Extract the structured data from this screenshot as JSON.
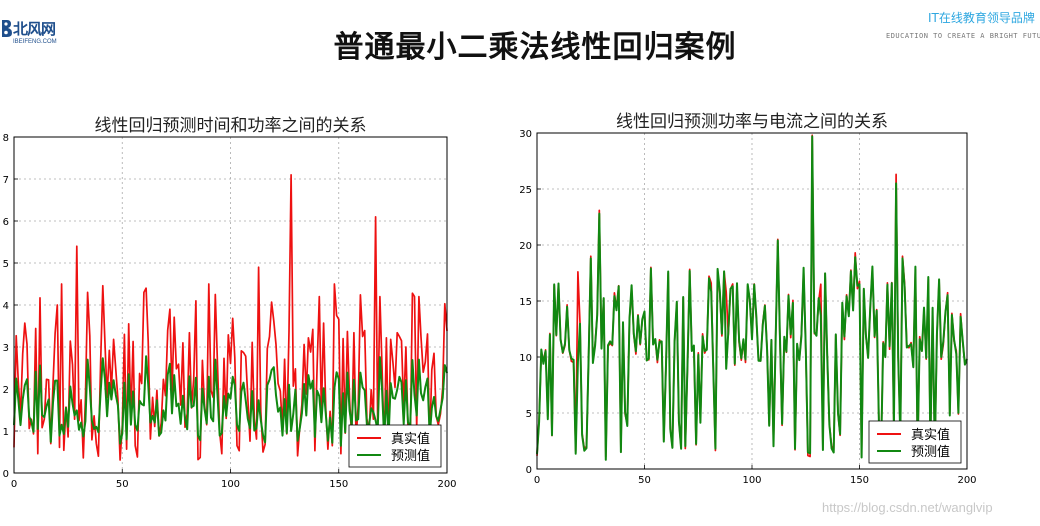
{
  "header": {
    "logo_cn": "北风网",
    "logo_en": "IBEIFENG.COM",
    "title": "普通最小二乘法线性回归案例",
    "tagline_cn": "IT在线教育领导品牌",
    "tagline_en": "EDUCATION TO CREATE A BRIGHT FUTURE"
  },
  "watermark": "https://blog.csdn.net/wanglvip",
  "colors": {
    "real": "#ee1111",
    "pred": "#118811"
  },
  "chart_data": [
    {
      "type": "line",
      "title": "线性回归预测时间和功率之间的关系",
      "xlabel": "",
      "ylabel": "",
      "xlim": [
        0,
        200
      ],
      "ylim": [
        0,
        8
      ],
      "xticks": [
        0,
        50,
        100,
        150,
        200
      ],
      "yticks": [
        0,
        1,
        2,
        3,
        4,
        5,
        6,
        7,
        8
      ],
      "grid": true,
      "legend": "bottom-right",
      "series": [
        {
          "name": "真实值",
          "color": "#ee1111",
          "values": []
        },
        {
          "name": "预测值",
          "color": "#118811",
          "values": []
        }
      ]
    },
    {
      "type": "line",
      "title": "线性回归预测功率与电流之间的关系",
      "xlabel": "",
      "ylabel": "",
      "xlim": [
        0,
        200
      ],
      "ylim": [
        0,
        30
      ],
      "xticks": [
        0,
        50,
        100,
        150,
        200
      ],
      "yticks": [
        0,
        5,
        10,
        15,
        20,
        25,
        30
      ],
      "grid": true,
      "legend": "bottom-right",
      "series": [
        {
          "name": "真实值",
          "color": "#ee1111",
          "values": []
        },
        {
          "name": "预测值",
          "color": "#118811",
          "values": []
        }
      ]
    }
  ]
}
